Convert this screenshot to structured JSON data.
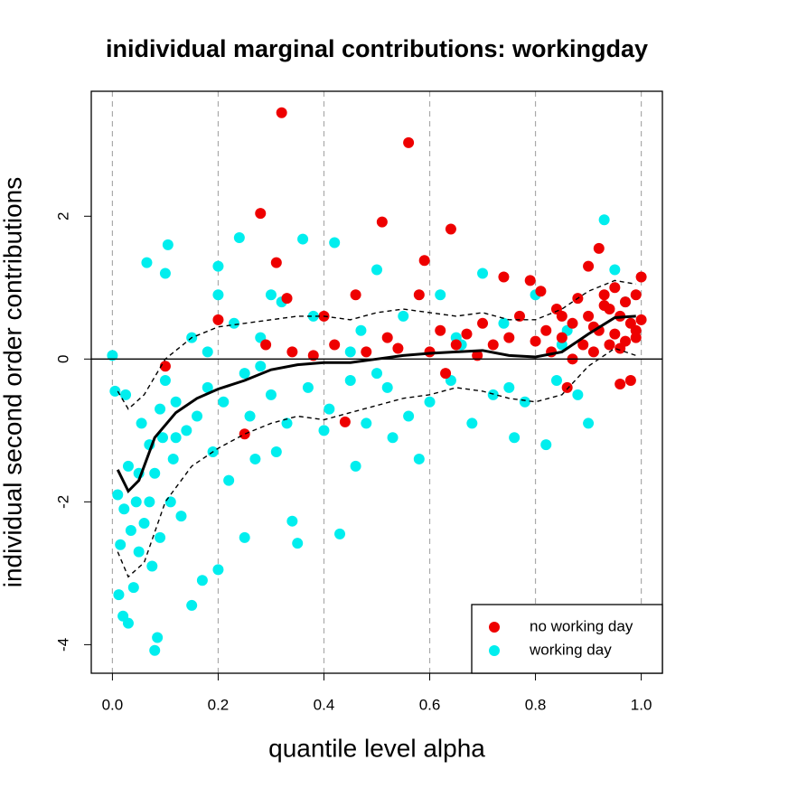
{
  "chart_data": {
    "type": "scatter",
    "title": "inidividual marginal contributions: workingday",
    "x_label": "quantile level alpha",
    "y_label": "individual second order contributions",
    "xlim": [
      -0.04,
      1.04
    ],
    "ylim": [
      -4.4,
      3.75
    ],
    "xticks": [
      {
        "value": 0,
        "label": "0.0"
      },
      0.2,
      0.4,
      0.6,
      0.8,
      {
        "value": 1,
        "label": "1.0"
      }
    ],
    "yticks": [
      -4,
      -2,
      0,
      2
    ],
    "grid": true,
    "legend": "bottom-right",
    "series": [
      {
        "name": "working day",
        "color": "#00eeee",
        "x": [
          0.0,
          0.005,
          0.01,
          0.012,
          0.015,
          0.02,
          0.022,
          0.025,
          0.03,
          0.03,
          0.035,
          0.04,
          0.045,
          0.05,
          0.05,
          0.055,
          0.06,
          0.065,
          0.07,
          0.07,
          0.075,
          0.08,
          0.08,
          0.085,
          0.09,
          0.09,
          0.095,
          0.1,
          0.1,
          0.105,
          0.11,
          0.115,
          0.12,
          0.13,
          0.14,
          0.15,
          0.15,
          0.16,
          0.17,
          0.18,
          0.19,
          0.2,
          0.2,
          0.21,
          0.22,
          0.23,
          0.24,
          0.25,
          0.26,
          0.27,
          0.28,
          0.3,
          0.31,
          0.32,
          0.33,
          0.34,
          0.35,
          0.36,
          0.37,
          0.38,
          0.4,
          0.41,
          0.42,
          0.43,
          0.45,
          0.46,
          0.47,
          0.48,
          0.5,
          0.52,
          0.53,
          0.55,
          0.56,
          0.58,
          0.6,
          0.62,
          0.64,
          0.66,
          0.68,
          0.7,
          0.72,
          0.74,
          0.76,
          0.78,
          0.8,
          0.82,
          0.84,
          0.86,
          0.88,
          0.9,
          0.93,
          0.95,
          0.97,
          0.2,
          0.25,
          0.3,
          0.45,
          0.5,
          0.65,
          0.75,
          0.85,
          0.12,
          0.18,
          0.28
        ],
        "values": [
          0.05,
          -0.45,
          -1.9,
          -3.3,
          -2.6,
          -3.6,
          -2.1,
          -0.5,
          -3.7,
          -1.5,
          -2.4,
          -3.2,
          -2.0,
          -1.6,
          -2.7,
          -0.9,
          -2.3,
          1.35,
          -2.0,
          -1.2,
          -2.9,
          -4.08,
          -1.6,
          -3.9,
          -2.5,
          -0.7,
          -1.1,
          1.2,
          -0.3,
          1.6,
          -2.0,
          -1.4,
          -0.6,
          -2.2,
          -1.0,
          -3.45,
          0.3,
          -0.8,
          -3.1,
          -0.4,
          -1.3,
          -2.95,
          0.9,
          -0.6,
          -1.7,
          0.5,
          1.7,
          -2.5,
          -0.8,
          -1.4,
          0.3,
          -0.5,
          -1.3,
          0.8,
          -0.9,
          -2.27,
          -2.58,
          1.68,
          -0.4,
          0.6,
          -1.0,
          -0.7,
          1.63,
          -2.45,
          -0.3,
          -1.5,
          0.4,
          -0.9,
          1.25,
          -0.4,
          -1.1,
          0.6,
          -0.8,
          -1.4,
          -0.6,
          0.9,
          -0.3,
          0.2,
          -0.9,
          1.2,
          -0.5,
          0.5,
          -1.1,
          -0.6,
          0.9,
          -1.2,
          -0.3,
          0.4,
          -0.5,
          -0.9,
          1.95,
          1.25,
          0.8,
          1.3,
          -0.2,
          0.9,
          0.1,
          -0.2,
          0.3,
          -0.4,
          0.2,
          -1.1,
          0.1,
          -0.1
        ]
      },
      {
        "name": "no working day",
        "color": "#ee0000",
        "x": [
          0.1,
          0.2,
          0.25,
          0.28,
          0.29,
          0.31,
          0.32,
          0.33,
          0.34,
          0.38,
          0.4,
          0.42,
          0.44,
          0.46,
          0.48,
          0.51,
          0.52,
          0.54,
          0.56,
          0.58,
          0.59,
          0.6,
          0.62,
          0.63,
          0.64,
          0.65,
          0.67,
          0.69,
          0.7,
          0.72,
          0.74,
          0.75,
          0.77,
          0.79,
          0.8,
          0.81,
          0.82,
          0.83,
          0.84,
          0.85,
          0.86,
          0.87,
          0.88,
          0.89,
          0.9,
          0.9,
          0.91,
          0.92,
          0.92,
          0.93,
          0.94,
          0.94,
          0.95,
          0.95,
          0.96,
          0.96,
          0.97,
          0.97,
          0.98,
          0.98,
          0.99,
          0.99,
          1.0,
          1.0,
          0.87,
          0.91,
          0.93,
          0.96,
          0.99,
          0.85
        ],
        "values": [
          -0.1,
          0.55,
          -1.05,
          2.04,
          0.2,
          1.35,
          3.45,
          0.85,
          0.1,
          0.05,
          0.6,
          0.2,
          -0.88,
          0.9,
          0.1,
          1.92,
          0.3,
          0.15,
          3.03,
          0.9,
          1.38,
          0.1,
          0.4,
          -0.2,
          1.82,
          0.2,
          0.35,
          0.05,
          0.5,
          0.2,
          1.15,
          0.3,
          0.6,
          1.1,
          0.25,
          0.95,
          0.4,
          0.1,
          0.7,
          0.3,
          -0.4,
          0.5,
          0.85,
          0.2,
          0.6,
          1.3,
          0.1,
          1.55,
          0.4,
          0.9,
          0.2,
          0.7,
          1.0,
          0.35,
          0.6,
          -0.35,
          0.8,
          0.25,
          0.5,
          -0.3,
          0.9,
          0.3,
          1.15,
          0.55,
          0.0,
          0.45,
          0.75,
          0.15,
          0.4,
          0.6
        ]
      }
    ],
    "curves": [
      {
        "color": "#000000",
        "dashed": false,
        "x": [
          0.01,
          0.03,
          0.05,
          0.08,
          0.12,
          0.16,
          0.2,
          0.25,
          0.3,
          0.35,
          0.4,
          0.45,
          0.5,
          0.55,
          0.6,
          0.65,
          0.7,
          0.75,
          0.8,
          0.85,
          0.9,
          0.95,
          0.99
        ],
        "values": [
          -1.55,
          -1.85,
          -1.7,
          -1.1,
          -0.75,
          -0.55,
          -0.42,
          -0.3,
          -0.15,
          -0.08,
          -0.05,
          -0.05,
          0.0,
          0.05,
          0.08,
          0.1,
          0.12,
          0.05,
          0.03,
          0.1,
          0.35,
          0.58,
          0.6
        ]
      },
      {
        "color": "#000000",
        "dashed": true,
        "x": [
          0.01,
          0.03,
          0.06,
          0.1,
          0.15,
          0.2,
          0.25,
          0.3,
          0.35,
          0.4,
          0.45,
          0.5,
          0.55,
          0.6,
          0.65,
          0.7,
          0.75,
          0.8,
          0.85,
          0.9,
          0.95,
          0.99
        ],
        "values": [
          -0.45,
          -0.7,
          -0.5,
          0.0,
          0.3,
          0.45,
          0.5,
          0.55,
          0.6,
          0.6,
          0.55,
          0.65,
          0.7,
          0.65,
          0.6,
          0.65,
          0.55,
          0.55,
          0.7,
          0.95,
          1.1,
          1.05
        ]
      },
      {
        "color": "#000000",
        "dashed": true,
        "x": [
          0.01,
          0.03,
          0.06,
          0.1,
          0.15,
          0.2,
          0.25,
          0.3,
          0.35,
          0.4,
          0.45,
          0.5,
          0.55,
          0.6,
          0.65,
          0.7,
          0.75,
          0.8,
          0.85,
          0.9,
          0.95,
          0.99
        ],
        "values": [
          -2.7,
          -3.05,
          -2.85,
          -2.0,
          -1.5,
          -1.25,
          -1.05,
          -0.9,
          -0.8,
          -0.85,
          -0.75,
          -0.65,
          -0.55,
          -0.5,
          -0.4,
          -0.45,
          -0.55,
          -0.6,
          -0.5,
          -0.1,
          0.15,
          0.05
        ]
      }
    ]
  }
}
